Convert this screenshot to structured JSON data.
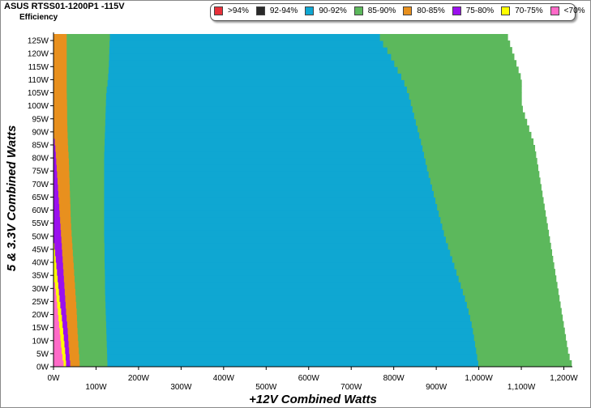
{
  "title": "ASUS RTSS01-1200P1 -115V",
  "subtitle": "Efficiency",
  "chart_data": {
    "type": "heatmap",
    "title": "ASUS RTSS01-1200P1 -115V",
    "subtitle": "Efficiency",
    "xlabel": "+12V Combined Watts",
    "ylabel": "5 & 3.3V Combined Watts",
    "xlim": [
      0,
      1220
    ],
    "ylim": [
      0,
      127.5
    ],
    "x_ticks": [
      "0W",
      "100W",
      "200W",
      "300W",
      "400W",
      "500W",
      "600W",
      "700W",
      "800W",
      "900W",
      "1,000W",
      "1,100W",
      "1,200W"
    ],
    "x_tick_values": [
      0,
      100,
      200,
      300,
      400,
      500,
      600,
      700,
      800,
      900,
      1000,
      1100,
      1200
    ],
    "y_ticks": [
      "0W",
      "5W",
      "10W",
      "15W",
      "20W",
      "25W",
      "30W",
      "35W",
      "40W",
      "45W",
      "50W",
      "55W",
      "60W",
      "65W",
      "70W",
      "75W",
      "80W",
      "85W",
      "90W",
      "95W",
      "100W",
      "105W",
      "110W",
      "115W",
      "120W",
      "125W"
    ],
    "y_tick_values": [
      0,
      5,
      10,
      15,
      20,
      25,
      30,
      35,
      40,
      45,
      50,
      55,
      60,
      65,
      70,
      75,
      80,
      85,
      90,
      95,
      100,
      105,
      110,
      115,
      120,
      125
    ],
    "legend": [
      {
        "label": ">94%",
        "color": "#e8303a"
      },
      {
        "label": "92-94%",
        "color": "#2a2a2a"
      },
      {
        "label": "90-92%",
        "color": "#0fa7d2"
      },
      {
        "label": "85-90%",
        "color": "#5cb85c"
      },
      {
        "label": "80-85%",
        "color": "#e8901e"
      },
      {
        "label": "75-80%",
        "color": "#9a10ee"
      },
      {
        "label": "70-75%",
        "color": "#ffff00"
      },
      {
        "label": "<70%",
        "color": "#ff6ac8"
      }
    ],
    "legend_position": "top-right",
    "grid": false,
    "row_step_w": 2.5,
    "band_order": [
      "<70%",
      "70-75%",
      "75-80%",
      "80-85%",
      "85-90%",
      "90-92%"
    ],
    "band_boundaries": {
      "note_units": "watts of +12V load at given 5&3.3V load",
      "y_values": [
        0,
        5,
        10,
        15,
        20,
        25,
        30,
        35,
        40,
        45,
        50,
        55,
        60,
        65,
        70,
        75,
        80,
        85,
        90,
        95,
        100,
        105,
        110,
        115,
        120,
        125,
        127.5
      ],
      "pink_end": [
        25,
        20,
        17,
        14,
        11,
        8,
        5,
        0,
        0,
        0,
        0,
        0,
        0,
        0,
        0,
        0,
        0,
        0,
        0,
        0,
        0,
        0,
        0,
        0,
        0,
        0,
        0
      ],
      "yellow_end": [
        30,
        28,
        25,
        22,
        19,
        15,
        12,
        9,
        6,
        3,
        0,
        0,
        0,
        0,
        0,
        0,
        0,
        0,
        0,
        0,
        0,
        0,
        0,
        0,
        0,
        0,
        0
      ],
      "purple_end": [
        40,
        37,
        35,
        33,
        30,
        28,
        26,
        24,
        22,
        20,
        18,
        16,
        14,
        12,
        10,
        8,
        6,
        4,
        0,
        0,
        0,
        0,
        0,
        0,
        0,
        0,
        0
      ],
      "orange_end": [
        62,
        60,
        58,
        56,
        55,
        53,
        51,
        49,
        47,
        45,
        43,
        41,
        40,
        39,
        38,
        37,
        36,
        34,
        33,
        32,
        32,
        31,
        31,
        31,
        31,
        31,
        31
      ],
      "green_end": [
        127,
        126,
        125,
        124,
        123,
        122,
        121,
        121,
        120,
        120,
        119,
        119,
        119,
        119,
        119,
        119,
        119,
        120,
        121,
        122,
        123,
        124,
        128,
        130,
        131,
        132,
        133
      ],
      "blue_end": [
        1000,
        995,
        990,
        985,
        978,
        970,
        960,
        950,
        940,
        930,
        920,
        912,
        904,
        896,
        888,
        880,
        873,
        866,
        858,
        850,
        842,
        834,
        822,
        805,
        790,
        770,
        765
      ],
      "max_x": [
        1220,
        1210,
        1205,
        1200,
        1195,
        1190,
        1185,
        1180,
        1175,
        1170,
        1165,
        1160,
        1155,
        1150,
        1145,
        1140,
        1135,
        1130,
        1120,
        1110,
        1100,
        1100,
        1100,
        1090,
        1080,
        1070,
        1065
      ]
    }
  }
}
